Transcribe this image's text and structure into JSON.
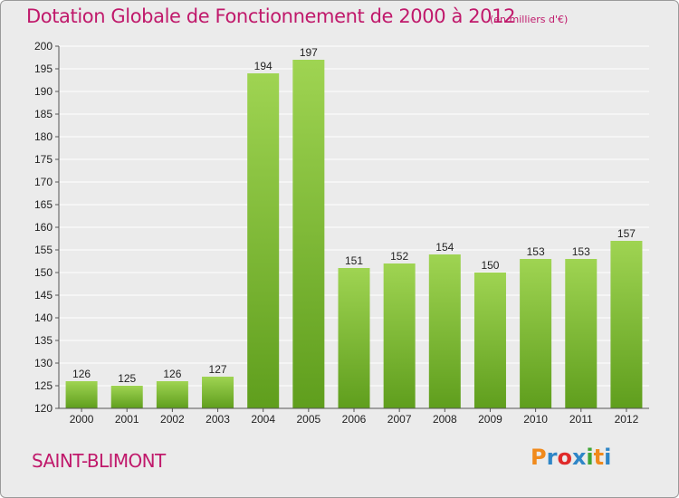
{
  "header": {
    "title": "Dotation Globale de Fonctionnement de 2000 à 2012",
    "unit": "(en milliers d'€)"
  },
  "footer": {
    "commune": "SAINT-BLIMONT",
    "logo_letters": [
      "P",
      "r",
      "o",
      "x",
      "i",
      "t",
      "i"
    ]
  },
  "colors": {
    "title": "#c0196b",
    "bar_light": "#9fd452",
    "bar_dark": "#5f9e1d",
    "logo": [
      "#f08a1c",
      "#2f86c7",
      "#e02a2a",
      "#2f86c7",
      "#3fa535",
      "#f08a1c",
      "#2f86c7"
    ]
  },
  "chart_data": {
    "type": "bar",
    "categories": [
      "2000",
      "2001",
      "2002",
      "2003",
      "2004",
      "2005",
      "2006",
      "2007",
      "2008",
      "2009",
      "2010",
      "2011",
      "2012"
    ],
    "values": [
      126,
      125,
      126,
      127,
      194,
      197,
      151,
      152,
      154,
      150,
      153,
      153,
      157
    ],
    "title": "Dotation Globale de Fonctionnement de 2000 à 2012",
    "ylabel": "(en milliers d'€)",
    "ylim": [
      120,
      200
    ],
    "yticks": [
      120,
      125,
      130,
      135,
      140,
      145,
      150,
      155,
      160,
      165,
      170,
      175,
      180,
      185,
      190,
      195,
      200
    ],
    "grid": true,
    "data_labels": true
  }
}
